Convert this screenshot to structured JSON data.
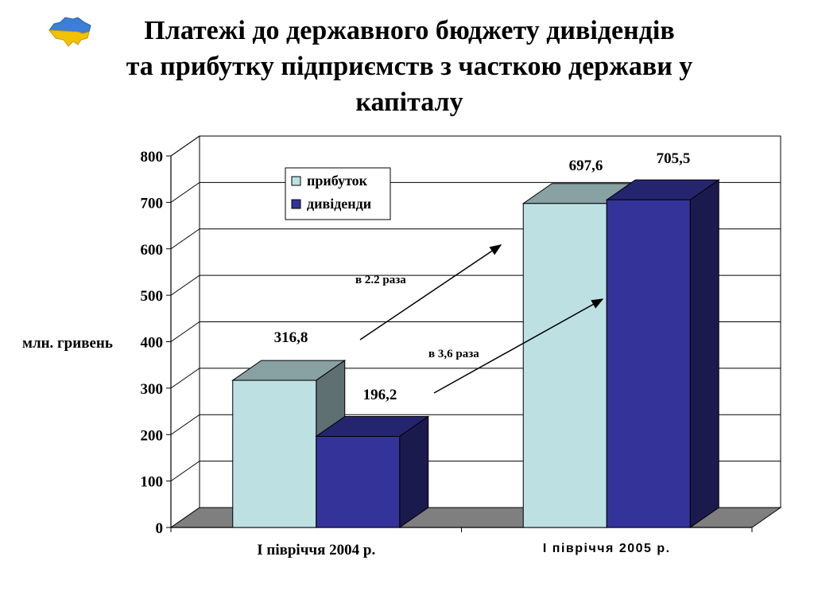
{
  "title": {
    "line1": "Платежі до державного бюджету дивідендів",
    "line2": "та прибутку підприємств з часткою держави у",
    "line3": "капіталу"
  },
  "logo_icon": "ukraine-map-icon",
  "chart_data": {
    "type": "bar",
    "categories": [
      "І півріччя 2004 р.",
      "І півріччя 2005 р."
    ],
    "series": [
      {
        "name": "прибуток",
        "values": [
          316.8,
          697.6
        ],
        "labels": [
          "316,8",
          "697,6"
        ],
        "color": "#BDE0E3"
      },
      {
        "name": "дивіденди",
        "values": [
          196.2,
          705.5
        ],
        "labels": [
          "196,2",
          "705,5"
        ],
        "color": "#33339A"
      }
    ],
    "ylabel": "млн. гривень",
    "ylim": [
      0,
      800
    ],
    "yticks": [
      0,
      100,
      200,
      300,
      400,
      500,
      600,
      700,
      800
    ],
    "grid": true,
    "legend_position": "top-left",
    "three_d": true,
    "annotations": [
      "в 2.2 раза",
      "в 3,6 раза"
    ]
  }
}
